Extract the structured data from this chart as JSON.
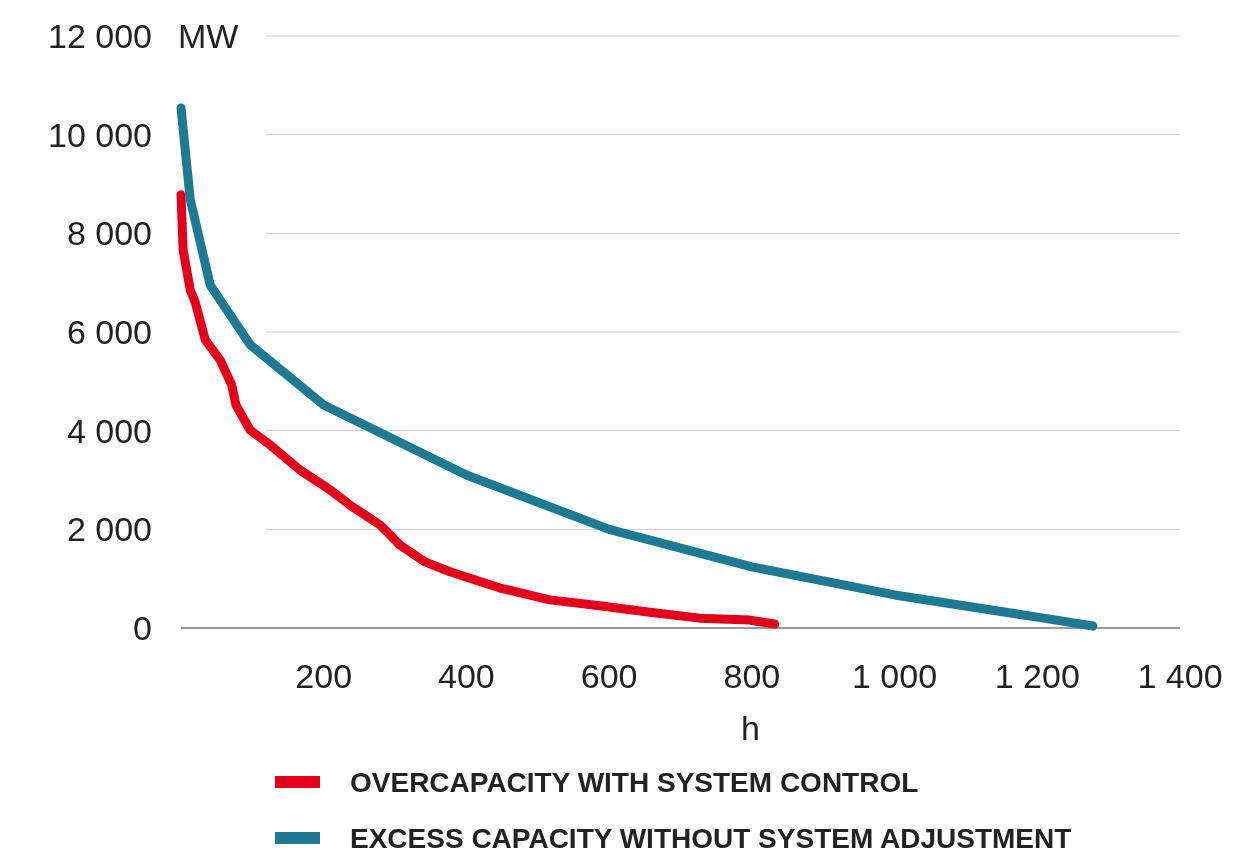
{
  "chart_data": {
    "type": "line",
    "xlabel": "h",
    "ylabel": "MW",
    "xlim": [
      0,
      1400
    ],
    "ylim": [
      0,
      12000
    ],
    "xticks": [
      {
        "value": 200,
        "label": "200"
      },
      {
        "value": 400,
        "label": "400"
      },
      {
        "value": 600,
        "label": "600"
      },
      {
        "value": 800,
        "label": "800"
      },
      {
        "value": 1000,
        "label": "1 000"
      },
      {
        "value": 1200,
        "label": "1 200"
      },
      {
        "value": 1400,
        "label": "1 400"
      }
    ],
    "yticks": [
      {
        "value": 0,
        "label": "0"
      },
      {
        "value": 2000,
        "label": "2 000"
      },
      {
        "value": 4000,
        "label": "4 000"
      },
      {
        "value": 6000,
        "label": "6 000"
      },
      {
        "value": 8000,
        "label": "8 000"
      },
      {
        "value": 10000,
        "label": "10 000"
      },
      {
        "value": 12000,
        "label": "12 000"
      }
    ],
    "grid": "y",
    "legend": "bottom",
    "marker": "none",
    "line_style": "solid",
    "series": [
      {
        "name": "OVERCAPACITY WITH SYSTEM CONTROL",
        "color": "#e3001b",
        "x": [
          0,
          3,
          13,
          20,
          34,
          55,
          71,
          77,
          97,
          125,
          167,
          209,
          237,
          279,
          307,
          342,
          377,
          447,
          517,
          587,
          657,
          727,
          797,
          832
        ],
        "values": [
          8780,
          7660,
          6850,
          6600,
          5840,
          5430,
          4930,
          4520,
          4010,
          3710,
          3200,
          2800,
          2490,
          2090,
          1680,
          1340,
          1140,
          810,
          570,
          450,
          320,
          200,
          160,
          80
        ]
      },
      {
        "name": "EXCESS CAPACITY WITHOUT SYSTEM ADJUSTMENT",
        "color": "#1d7a92",
        "x": [
          0,
          13,
          41,
          97,
          200,
          400,
          600,
          800,
          1000,
          1200,
          1278
        ],
        "values": [
          10540,
          8680,
          6950,
          5740,
          4520,
          3100,
          2000,
          1240,
          670,
          220,
          40
        ]
      }
    ]
  }
}
